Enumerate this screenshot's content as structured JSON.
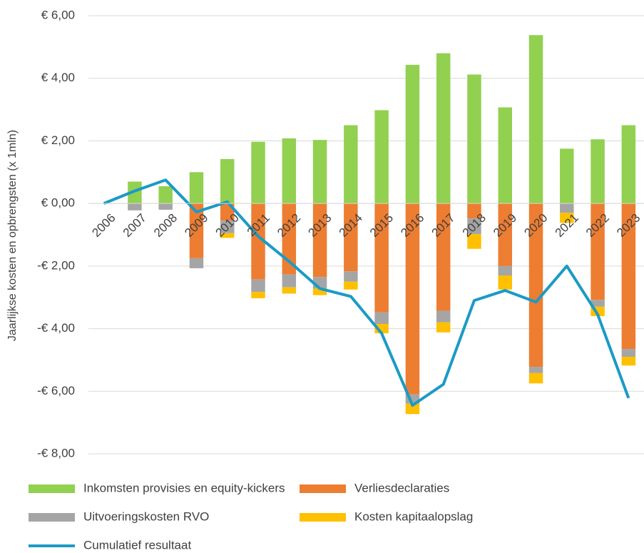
{
  "chart_data": {
    "type": "bar",
    "y_label": "Jaarlijkse kosten en opbrengsten (x 1mln)",
    "categories": [
      "2006",
      "2007",
      "2008",
      "2009",
      "2010",
      "2011",
      "2012",
      "2013",
      "2014",
      "2015",
      "2016",
      "2017",
      "2018",
      "2019",
      "2020",
      "2021",
      "2022",
      "2023"
    ],
    "series": [
      {
        "name": "Inkomsten provisies en equity-kickers",
        "color": "#92d050",
        "kind": "bar",
        "values": [
          0,
          0.7,
          0.55,
          1.0,
          1.42,
          1.97,
          2.08,
          2.03,
          2.5,
          2.98,
          4.43,
          4.8,
          4.12,
          3.07,
          5.38,
          1.75,
          2.05,
          2.5
        ]
      },
      {
        "name": "Verliesdeclaraties",
        "color": "#ed7d31",
        "kind": "bar",
        "values": [
          0,
          0,
          0,
          -1.75,
          -0.55,
          -2.43,
          -2.27,
          -2.35,
          -2.17,
          -3.48,
          -6.1,
          -3.43,
          -0.48,
          -2.0,
          -5.22,
          0,
          -3.08,
          -4.65
        ]
      },
      {
        "name": "Uitvoeringskosten RVO",
        "color": "#a5a5a5",
        "kind": "bar",
        "values": [
          0,
          -0.22,
          -0.2,
          -0.32,
          -0.4,
          -0.4,
          -0.41,
          -0.37,
          -0.33,
          -0.37,
          -0.3,
          -0.37,
          -0.5,
          -0.3,
          -0.2,
          -0.3,
          -0.22,
          -0.25
        ]
      },
      {
        "name": "Kosten kapitaalopslag",
        "color": "#ffc000",
        "kind": "bar",
        "values": [
          0,
          0,
          0,
          0,
          -0.15,
          -0.2,
          -0.2,
          -0.21,
          -0.25,
          -0.3,
          -0.33,
          -0.32,
          -0.47,
          -0.45,
          -0.33,
          -0.32,
          -0.3,
          -0.28
        ]
      },
      {
        "name": "Cumulatief resultaat",
        "color": "#1b9ac6",
        "kind": "line",
        "values": [
          0,
          0.4,
          0.75,
          -0.27,
          0.05,
          -1.05,
          -1.85,
          -2.72,
          -2.97,
          -4.15,
          -6.45,
          -5.78,
          -3.1,
          -2.78,
          -3.15,
          -2.0,
          -3.55,
          -6.22
        ]
      }
    ],
    "ylim": [
      -8,
      6
    ],
    "yticks": [
      {
        "value": -8,
        "label": "-€ 8,00"
      },
      {
        "value": -6,
        "label": "-€ 6,00"
      },
      {
        "value": -4,
        "label": "-€ 4,00"
      },
      {
        "value": -2,
        "label": "-€ 2,00"
      },
      {
        "value": 0,
        "label": "€ 0,00"
      },
      {
        "value": 2,
        "label": "€ 2,00"
      },
      {
        "value": 4,
        "label": "€ 4,00"
      },
      {
        "value": 6,
        "label": "€ 6,00"
      }
    ],
    "grid": true,
    "legend": "bottom"
  }
}
